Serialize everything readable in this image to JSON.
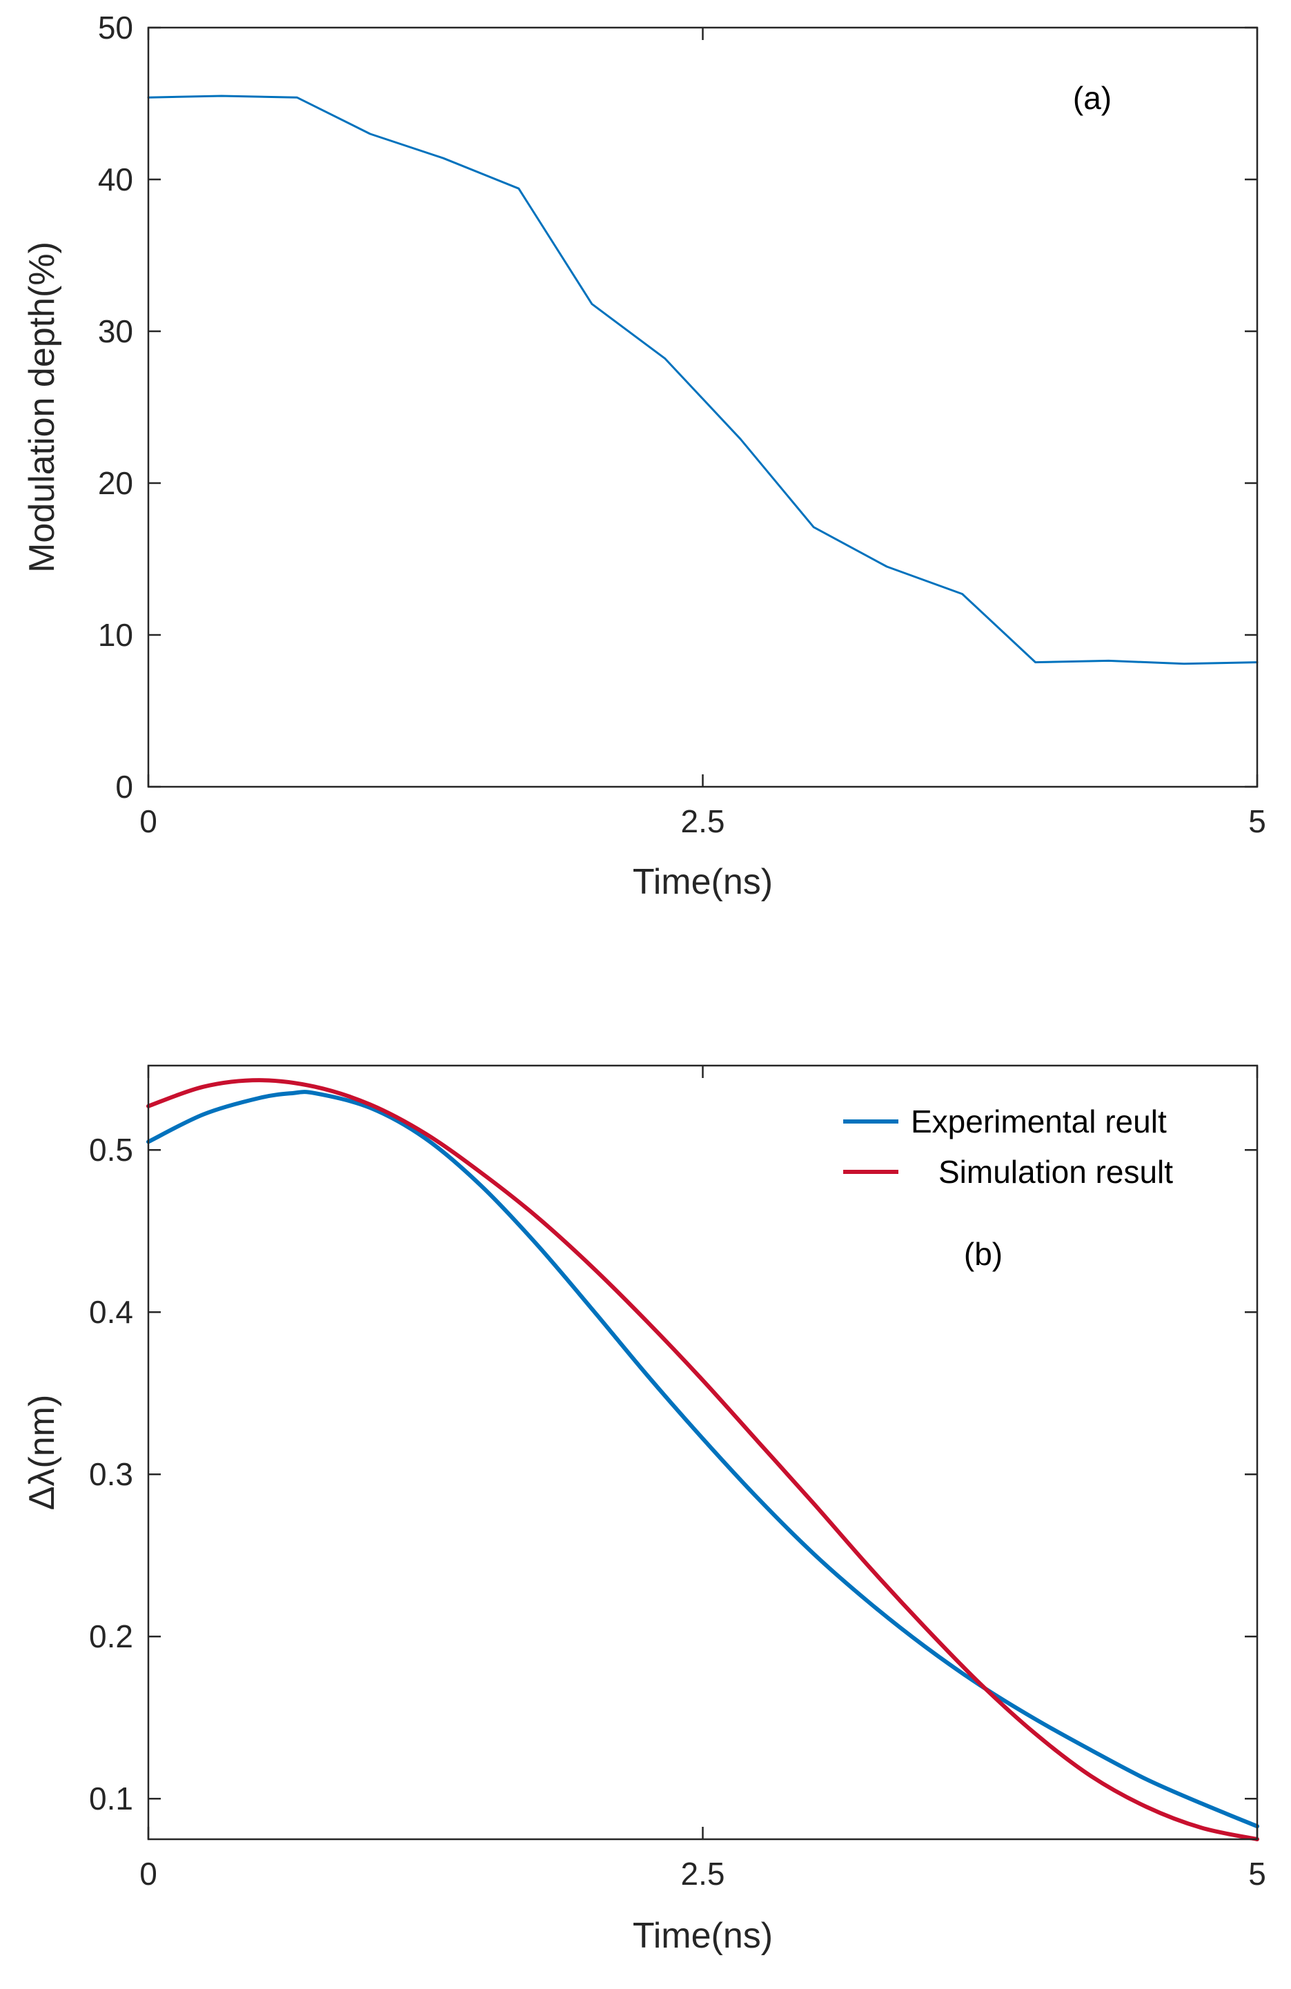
{
  "colors": {
    "axis": "#262626",
    "blue": "#0072BD",
    "red": "#C8102E"
  },
  "chart_data": [
    {
      "type": "line",
      "panel_label": "(a)",
      "xlabel": "Time(ns)",
      "ylabel": "Modulation depth(%)",
      "xlim": [
        0,
        5
      ],
      "ylim": [
        0,
        50
      ],
      "xticks": [
        0,
        2.5,
        5
      ],
      "xtick_labels": [
        "0",
        "2.5",
        "5"
      ],
      "yticks": [
        0,
        10,
        20,
        30,
        40,
        50
      ],
      "ytick_labels": [
        "0",
        "10",
        "20",
        "30",
        "40",
        "50"
      ],
      "series": [
        {
          "name": "Modulation depth",
          "color": "#0072BD",
          "x": [
            0,
            0.33,
            0.67,
            1.0,
            1.33,
            1.67,
            2.0,
            2.33,
            2.67,
            3.0,
            3.33,
            3.67,
            4.0,
            4.33,
            4.67,
            5.0
          ],
          "y": [
            45.4,
            45.5,
            45.4,
            43.0,
            41.4,
            39.4,
            31.8,
            28.2,
            22.9,
            17.1,
            14.5,
            12.7,
            8.2,
            8.3,
            8.1,
            8.2
          ]
        }
      ]
    },
    {
      "type": "line",
      "panel_label": "(b)",
      "xlabel": "Time(ns)",
      "ylabel": "Δλ(nm)",
      "xlim": [
        0,
        5
      ],
      "ylim": [
        0.075,
        0.552
      ],
      "xticks": [
        0,
        2.5,
        5
      ],
      "xtick_labels": [
        "0",
        "2.5",
        "5"
      ],
      "yticks": [
        0.1,
        0.2,
        0.3,
        0.4,
        0.5
      ],
      "ytick_labels": [
        "0.1",
        "0.2",
        "0.3",
        "0.4",
        "0.5"
      ],
      "legend_position": "top-right",
      "series": [
        {
          "name": "Experimental reult",
          "color": "#0072BD",
          "x": [
            0,
            0.25,
            0.5,
            0.65,
            0.75,
            1.0,
            1.25,
            1.5,
            1.75,
            2.0,
            2.25,
            2.5,
            2.75,
            3.0,
            3.25,
            3.5,
            3.75,
            4.0,
            4.25,
            4.5,
            4.75,
            5.0
          ],
          "y": [
            0.505,
            0.522,
            0.532,
            0.535,
            0.535,
            0.526,
            0.507,
            0.478,
            0.442,
            0.402,
            0.361,
            0.322,
            0.285,
            0.251,
            0.221,
            0.194,
            0.17,
            0.149,
            0.13,
            0.112,
            0.097,
            0.083
          ]
        },
        {
          "name": "Simulation result",
          "color": "#C8102E",
          "x": [
            0,
            0.25,
            0.5,
            0.75,
            1.0,
            1.25,
            1.5,
            1.75,
            2.0,
            2.25,
            2.5,
            2.75,
            3.0,
            3.25,
            3.5,
            3.75,
            4.0,
            4.25,
            4.5,
            4.75,
            5.0
          ],
          "y": [
            0.527,
            0.539,
            0.543,
            0.539,
            0.528,
            0.51,
            0.486,
            0.459,
            0.428,
            0.394,
            0.358,
            0.32,
            0.282,
            0.243,
            0.206,
            0.171,
            0.14,
            0.114,
            0.095,
            0.082,
            0.075
          ]
        }
      ]
    }
  ]
}
